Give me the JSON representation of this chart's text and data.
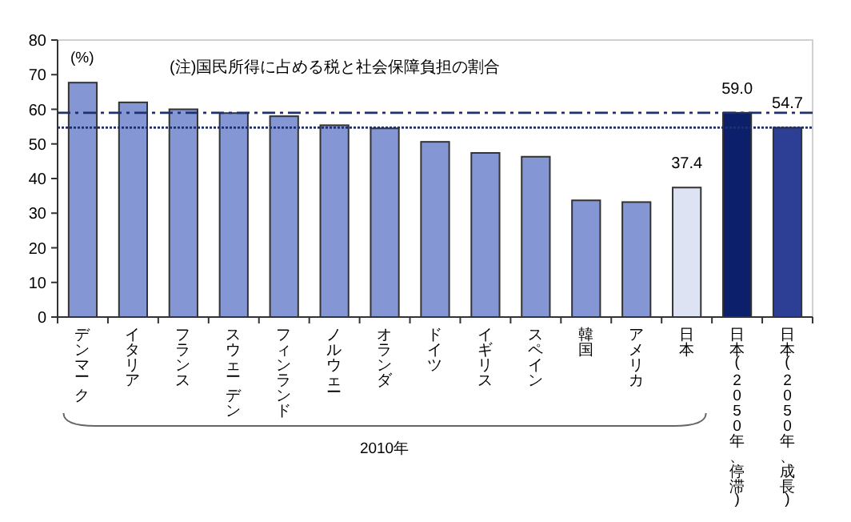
{
  "chart_data": {
    "type": "bar",
    "ylabel": "(%)",
    "annotations": [
      "(注)国民所得に占める税と社会保障負担の割合",
      {
        "text": "2010年"
      }
    ],
    "categories": [
      "デンマーク",
      "イタリア",
      "フランス",
      "スウェーデン",
      "フィンランド",
      "ノルウェー",
      "オランダ",
      "ドイツ",
      "イギリス",
      "スペイン",
      "韓国",
      "アメリカ",
      "日本",
      "日本(2050年、停滞)",
      "日本(2050年、成長)"
    ],
    "values": [
      67.7,
      62.0,
      60.0,
      58.9,
      58.0,
      55.4,
      54.5,
      50.6,
      47.4,
      46.3,
      33.7,
      33.2,
      37.4,
      59.0,
      54.7
    ],
    "colors": [
      "#8497d4",
      "#8497d4",
      "#8497d4",
      "#8497d4",
      "#8497d4",
      "#8497d4",
      "#8497d4",
      "#8497d4",
      "#8497d4",
      "#8497d4",
      "#8497d4",
      "#8497d4",
      "#dde3f3",
      "#0c1f6b",
      "#2c3f95"
    ],
    "value_labels": [
      null,
      null,
      null,
      null,
      null,
      null,
      null,
      null,
      null,
      null,
      null,
      null,
      "37.4",
      "59.0",
      "54.7"
    ],
    "ylim": [
      0,
      80
    ],
    "yticks": [
      0,
      10,
      20,
      30,
      40,
      50,
      60,
      70,
      80
    ],
    "grid": false,
    "ref_lines": [
      {
        "axis": "y",
        "value": 59.0,
        "color": "#1f3070",
        "line_style": "dashdot"
      },
      {
        "axis": "y",
        "value": 54.7,
        "color": "#1f3070",
        "line_style": "dotted"
      }
    ]
  }
}
